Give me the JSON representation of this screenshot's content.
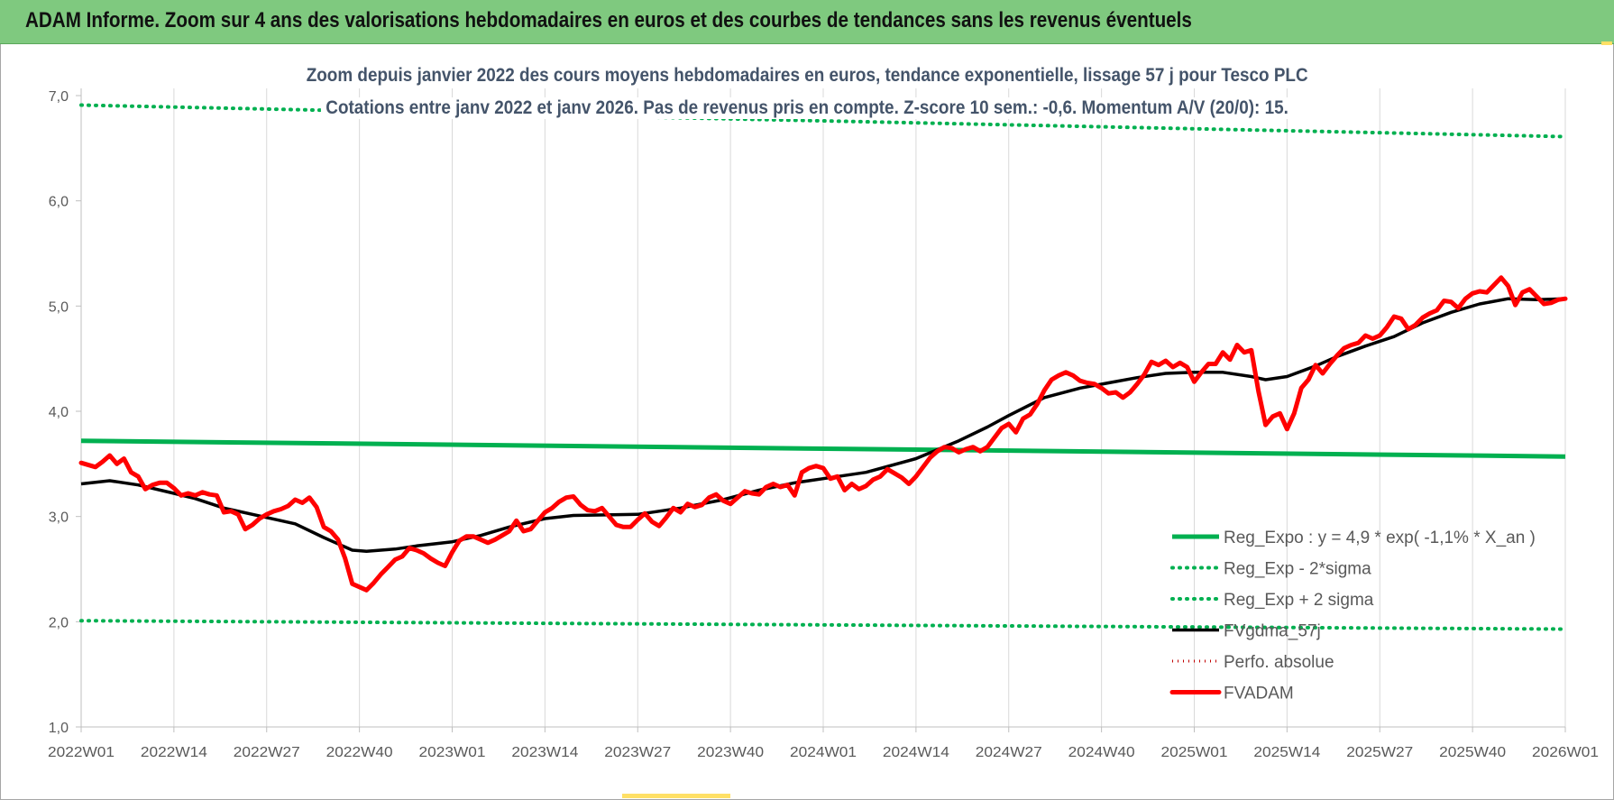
{
  "header": {
    "title": "ADAM Informe. Zoom sur 4 ans des valorisations hebdomadaires en euros et des courbes de tendances sans les revenus éventuels"
  },
  "colors": {
    "header_bg": "#7fc97f",
    "reg_expo": "#00b050",
    "sigma": "#00b050",
    "fvgdma": "#000000",
    "perfo": "#c00000",
    "fvadam": "#ff0000",
    "title_text": "#44546a"
  },
  "chart_data": {
    "type": "line",
    "title_line1": "Zoom depuis janvier 2022 des cours moyens hebdomadaires en euros, tendance exponentielle, lissage 57 j pour Tesco PLC",
    "title_line2": "Cotations entre janv 2022 et janv 2026. Pas de revenus pris en compte. Z-score 10 sem.: -0,6. Momentum A/V (20/0): 15.",
    "xlabel": "",
    "ylabel": "",
    "ylim": [
      1.0,
      7.0
    ],
    "yticks": [
      "1,0",
      "2,0",
      "3,0",
      "4,0",
      "5,0",
      "6,0",
      "7,0"
    ],
    "xticks": [
      "2022W01",
      "2022W14",
      "2022W27",
      "2022W40",
      "2023W01",
      "2023W14",
      "2023W27",
      "2023W40",
      "2024W01",
      "2024W14",
      "2024W27",
      "2024W40",
      "2025W01",
      "2025W14",
      "2025W27",
      "2025W40",
      "2026W01"
    ],
    "x_range_weeks": [
      0,
      208
    ],
    "grid": "vertical",
    "legend_position": "bottom-right",
    "legend": [
      {
        "label": "Reg_Expo : y = 4,9 * exp( -1,1% *  X_an )",
        "style": "solid",
        "series": "reg_expo"
      },
      {
        "label": "Reg_Exp - 2*sigma",
        "style": "dotted",
        "series": "reg_minus"
      },
      {
        "label": "Reg_Exp + 2 sigma",
        "style": "dotted",
        "series": "reg_plus"
      },
      {
        "label": "FVgdma_57j",
        "style": "solid",
        "series": "fvgdma"
      },
      {
        "label": "Perfo. absolue",
        "style": "dotted",
        "series": "perfo"
      },
      {
        "label": "FVADAM",
        "style": "solid",
        "series": "fvadam"
      }
    ],
    "series": [
      {
        "name": "Reg_Expo : y = 4,9 * exp( -1,1% *  X_an )",
        "key": "reg_expo",
        "x": [
          0,
          208
        ],
        "y": [
          3.72,
          3.57
        ]
      },
      {
        "name": "Reg_Exp - 2*sigma",
        "key": "reg_minus",
        "x": [
          0,
          208
        ],
        "y": [
          2.01,
          1.93
        ]
      },
      {
        "name": "Reg_Exp + 2 sigma",
        "key": "reg_plus",
        "x": [
          0,
          208
        ],
        "y": [
          6.91,
          6.61
        ]
      },
      {
        "name": "FVgdma_57j",
        "key": "fvgdma",
        "x": [
          0,
          4,
          8,
          13,
          16,
          20,
          26,
          30,
          34,
          38,
          40,
          44,
          47,
          52,
          56,
          60,
          65,
          69,
          78,
          84,
          90,
          95,
          100,
          104,
          110,
          117,
          123,
          127,
          130,
          135,
          140,
          144,
          148,
          152,
          156,
          160,
          164,
          166,
          169,
          173,
          176,
          180,
          184,
          188,
          192,
          196,
          200,
          204,
          208
        ],
        "y": [
          3.31,
          3.34,
          3.3,
          3.22,
          3.17,
          3.08,
          2.99,
          2.93,
          2.8,
          2.68,
          2.67,
          2.69,
          2.72,
          2.76,
          2.82,
          2.9,
          2.98,
          3.01,
          3.02,
          3.08,
          3.16,
          3.25,
          3.32,
          3.36,
          3.42,
          3.55,
          3.72,
          3.85,
          3.96,
          4.13,
          4.22,
          4.27,
          4.32,
          4.36,
          4.37,
          4.37,
          4.33,
          4.3,
          4.33,
          4.43,
          4.52,
          4.62,
          4.71,
          4.84,
          4.94,
          5.02,
          5.07,
          5.06,
          5.07
        ]
      },
      {
        "name": "Perfo. absolue",
        "key": "perfo",
        "x": [],
        "y": []
      },
      {
        "name": "FVADAM",
        "key": "fvadam",
        "x": [
          0,
          2,
          3,
          4,
          5,
          6,
          7,
          8,
          9,
          10,
          11,
          12,
          13,
          14,
          15,
          16,
          17,
          18,
          19,
          20,
          21,
          22,
          23,
          24,
          25,
          26,
          27,
          28,
          29,
          30,
          31,
          32,
          33,
          34,
          35,
          36,
          37,
          38,
          39,
          40,
          41,
          42,
          43,
          44,
          45,
          46,
          47,
          48,
          49,
          50,
          51,
          52,
          53,
          54,
          55,
          56,
          57,
          58,
          59,
          60,
          61,
          62,
          63,
          64,
          65,
          66,
          67,
          68,
          69,
          70,
          71,
          72,
          73,
          74,
          75,
          76,
          77,
          78,
          79,
          80,
          81,
          82,
          83,
          84,
          85,
          86,
          87,
          88,
          89,
          90,
          91,
          92,
          93,
          94,
          95,
          96,
          97,
          98,
          99,
          100,
          101,
          102,
          103,
          104,
          105,
          106,
          107,
          108,
          109,
          110,
          111,
          112,
          113,
          114,
          115,
          116,
          117,
          118,
          119,
          120,
          121,
          122,
          123,
          124,
          125,
          126,
          127,
          128,
          129,
          130,
          131,
          132,
          133,
          134,
          135,
          136,
          137,
          138,
          139,
          140,
          141,
          142,
          143,
          144,
          145,
          146,
          147,
          148,
          149,
          150,
          151,
          152,
          153,
          154,
          155,
          156,
          157,
          158,
          159,
          160,
          161,
          162,
          163,
          164,
          165,
          166,
          167,
          168,
          169,
          170,
          171,
          172,
          173,
          174,
          175,
          176,
          177,
          178,
          179,
          180,
          181,
          182,
          183,
          184,
          185,
          186,
          187,
          188,
          189,
          190,
          191,
          192,
          193,
          194,
          195,
          196,
          197,
          198,
          199,
          200,
          201,
          202,
          203,
          204,
          205,
          206,
          207,
          208
        ],
        "y": [
          3.51,
          3.47,
          3.52,
          3.58,
          3.5,
          3.55,
          3.42,
          3.38,
          3.26,
          3.3,
          3.32,
          3.32,
          3.27,
          3.2,
          3.22,
          3.2,
          3.23,
          3.21,
          3.2,
          3.04,
          3.05,
          3.02,
          2.88,
          2.92,
          2.98,
          3.02,
          3.05,
          3.07,
          3.1,
          3.16,
          3.13,
          3.18,
          3.09,
          2.9,
          2.86,
          2.78,
          2.6,
          2.36,
          2.33,
          2.3,
          2.37,
          2.45,
          2.52,
          2.59,
          2.62,
          2.7,
          2.68,
          2.65,
          2.6,
          2.56,
          2.53,
          2.66,
          2.77,
          2.81,
          2.81,
          2.78,
          2.75,
          2.78,
          2.82,
          2.86,
          2.96,
          2.86,
          2.88,
          2.96,
          3.04,
          3.08,
          3.14,
          3.18,
          3.19,
          3.11,
          3.06,
          3.05,
          3.08,
          3.0,
          2.92,
          2.9,
          2.9,
          2.97,
          3.03,
          2.95,
          2.91,
          2.99,
          3.08,
          3.04,
          3.12,
          3.09,
          3.11,
          3.18,
          3.21,
          3.15,
          3.12,
          3.18,
          3.24,
          3.22,
          3.21,
          3.28,
          3.31,
          3.28,
          3.3,
          3.2,
          3.42,
          3.46,
          3.48,
          3.46,
          3.36,
          3.38,
          3.25,
          3.31,
          3.26,
          3.29,
          3.35,
          3.38,
          3.45,
          3.41,
          3.37,
          3.31,
          3.38,
          3.47,
          3.56,
          3.62,
          3.66,
          3.65,
          3.61,
          3.64,
          3.66,
          3.62,
          3.66,
          3.75,
          3.84,
          3.88,
          3.8,
          3.93,
          3.97,
          4.07,
          4.2,
          4.3,
          4.34,
          4.37,
          4.34,
          4.29,
          4.27,
          4.26,
          4.22,
          4.17,
          4.18,
          4.13,
          4.18,
          4.26,
          4.35,
          4.47,
          4.44,
          4.48,
          4.42,
          4.46,
          4.42,
          4.28,
          4.37,
          4.45,
          4.45,
          4.56,
          4.49,
          4.63,
          4.56,
          4.58,
          4.19,
          3.87,
          3.95,
          3.98,
          3.83,
          3.98,
          4.22,
          4.3,
          4.44,
          4.36,
          4.45,
          4.53,
          4.6,
          4.63,
          4.65,
          4.72,
          4.69,
          4.72,
          4.8,
          4.9,
          4.88,
          4.78,
          4.82,
          4.89,
          4.93,
          4.96,
          5.05,
          5.04,
          4.98,
          5.07,
          5.12,
          5.14,
          5.13,
          5.2,
          5.27,
          5.19,
          5.01,
          5.13,
          5.16,
          5.09,
          5.02,
          5.03,
          5.06,
          5.07
        ]
      }
    ]
  }
}
